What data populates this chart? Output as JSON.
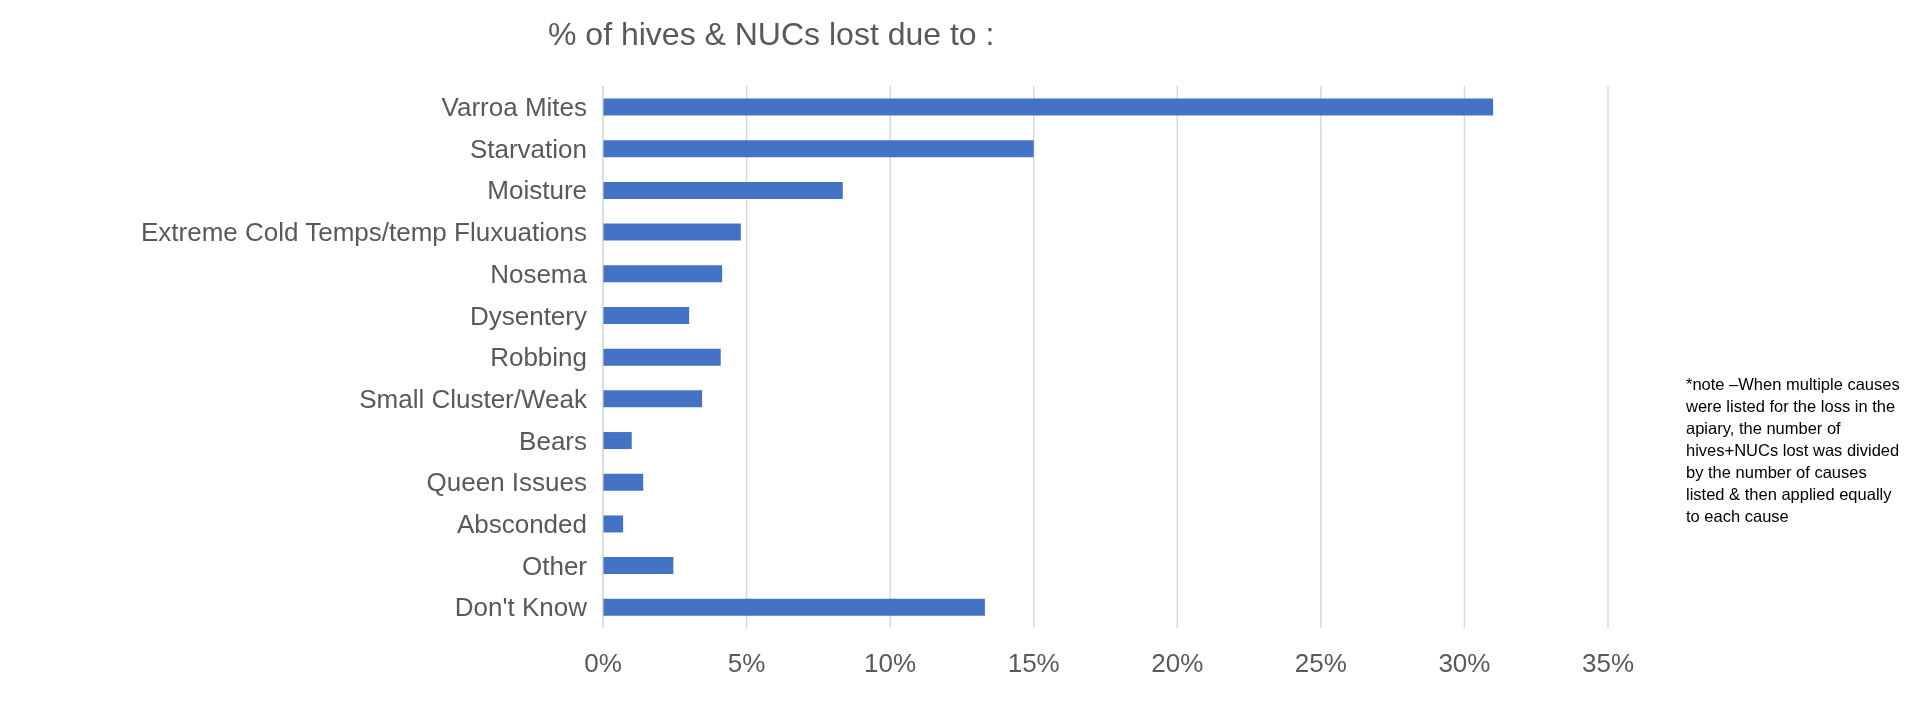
{
  "chart_data": {
    "type": "bar",
    "orientation": "horizontal",
    "title": "% of hives & NUCs  lost due to :",
    "categories": [
      "Varroa Mites",
      "Starvation",
      "Moisture",
      "Extreme Cold Temps/temp Fluxuations",
      "Nosema",
      "Dysentery",
      "Robbing",
      "Small Cluster/Weak",
      "Bears",
      "Queen Issues",
      "Absconded",
      "Other",
      "Don't Know"
    ],
    "values": [
      31.0,
      15.0,
      8.35,
      4.8,
      4.15,
      3.0,
      4.1,
      3.45,
      1.0,
      1.4,
      0.7,
      2.45,
      13.3
    ],
    "color": "#4472c4",
    "xlim": [
      0,
      35
    ],
    "xticks": [
      {
        "value": 0,
        "label": "0%"
      },
      {
        "value": 5,
        "label": "5%"
      },
      {
        "value": 10,
        "label": "10%"
      },
      {
        "value": 15,
        "label": "15%"
      },
      {
        "value": 20,
        "label": "20%"
      },
      {
        "value": 25,
        "label": "25%"
      },
      {
        "value": 30,
        "label": "30%"
      },
      {
        "value": 35,
        "label": "35%"
      }
    ],
    "grid": "x",
    "annotations": [
      "*note –When multiple causes were listed for the loss in the apiary, the number of hives+NUCs lost was divided by the number of causes listed & then applied equally to each cause"
    ]
  }
}
